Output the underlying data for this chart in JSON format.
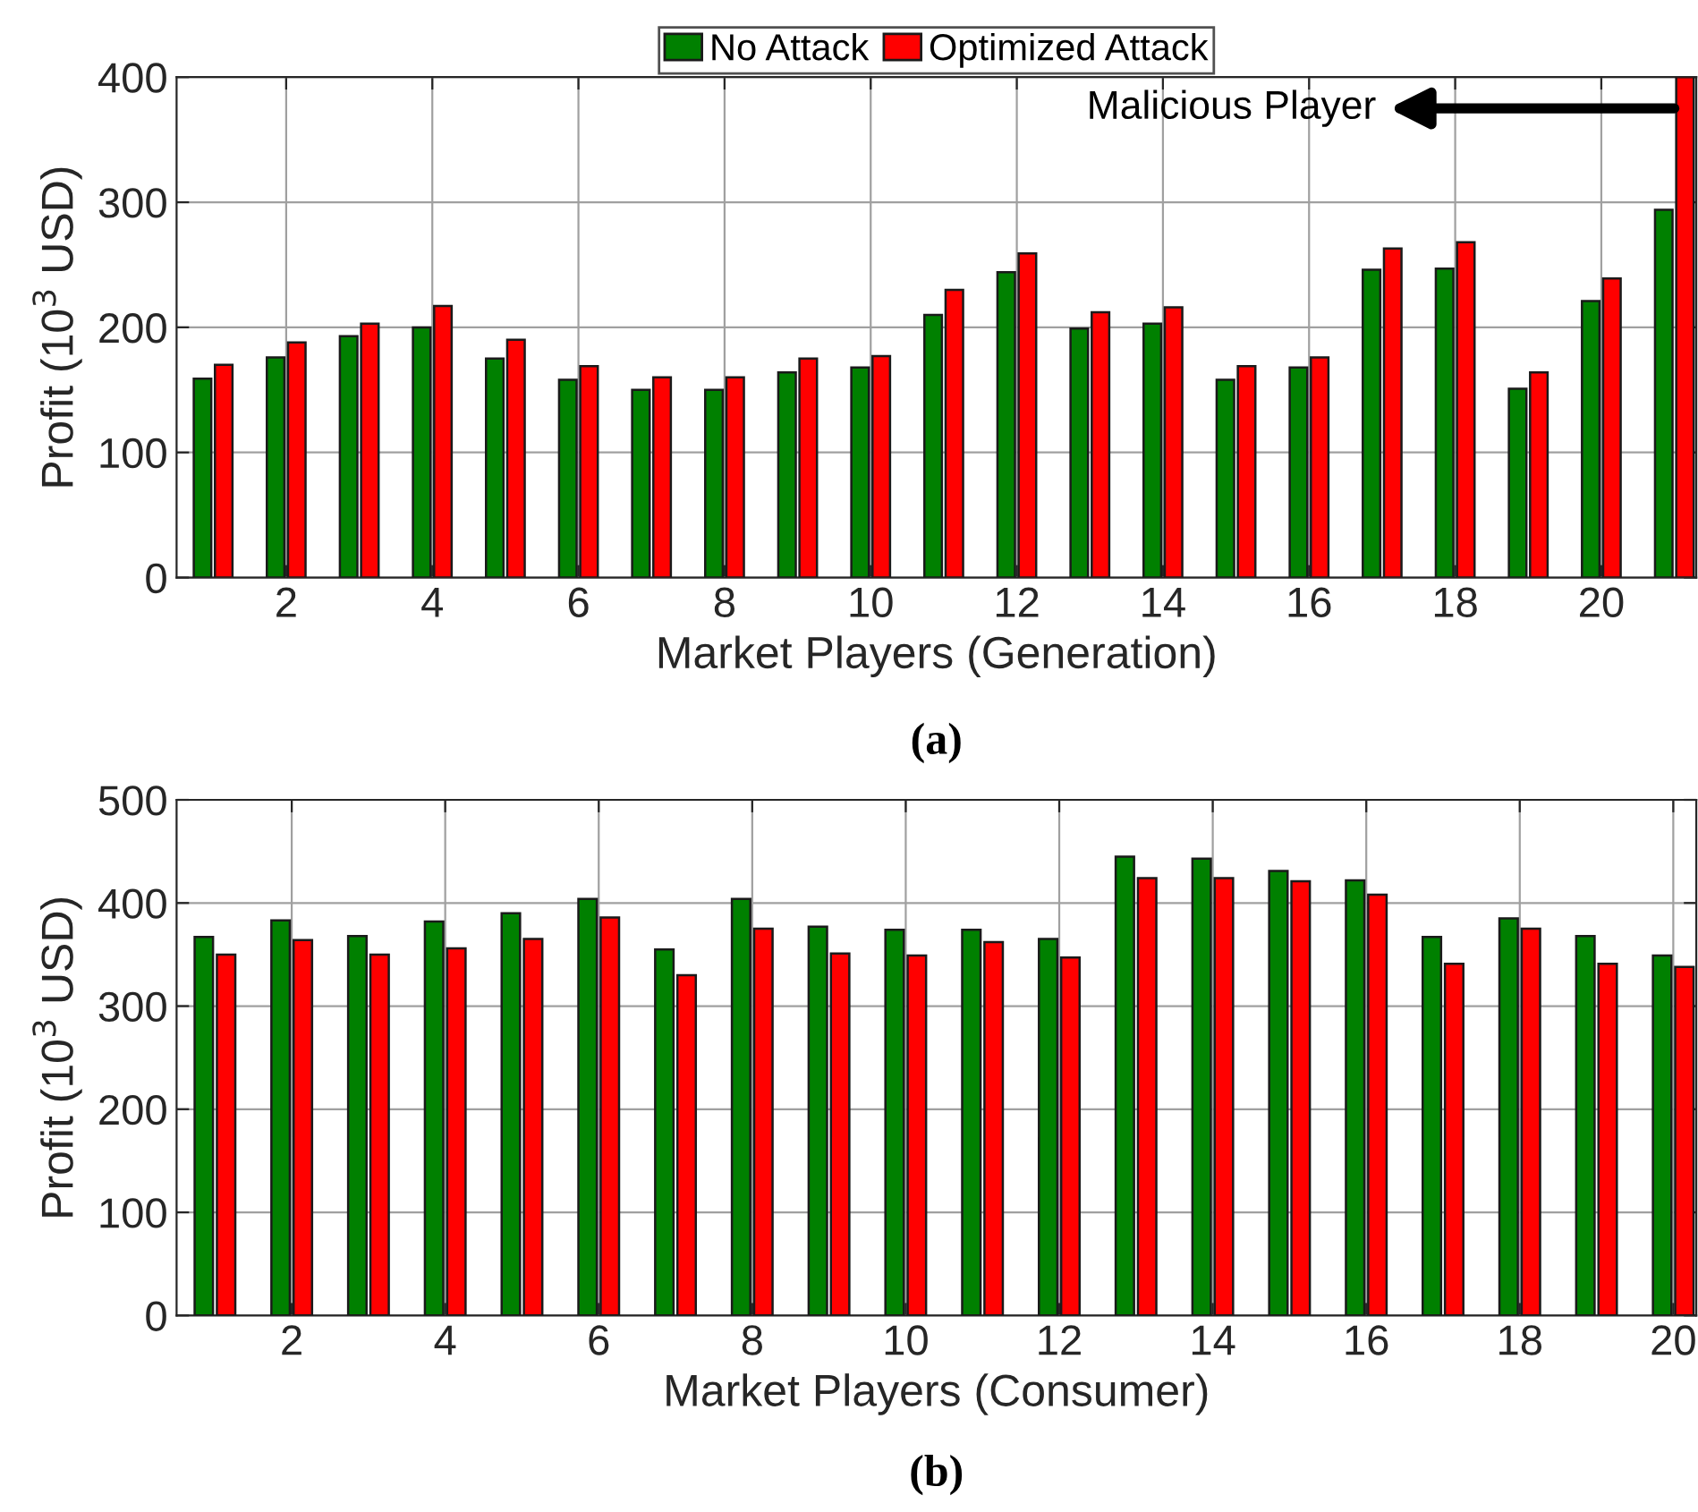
{
  "chart_data": [
    {
      "type": "bar",
      "title": "(a)",
      "xlabel": "Market Players (Generation)",
      "ylabel": "Profit (10$^{3}$ USD)",
      "x": [
        1,
        2,
        3,
        4,
        5,
        6,
        7,
        8,
        9,
        10,
        11,
        12,
        13,
        14,
        15,
        16,
        17,
        18,
        19,
        20,
        21
      ],
      "series": [
        {
          "name": "No Attack",
          "color": "#008000",
          "values": [
            159,
            176,
            193,
            200,
            175,
            158,
            150,
            150,
            164,
            168,
            210,
            244,
            199,
            203,
            158,
            168,
            246,
            247,
            151,
            221,
            294
          ]
        },
        {
          "name": "Optimized Attack",
          "color": "#ff0000",
          "values": [
            170,
            188,
            203,
            217,
            190,
            169,
            160,
            160,
            175,
            177,
            230,
            259,
            212,
            216,
            169,
            176,
            263,
            268,
            164,
            239,
            400
          ]
        }
      ],
      "xlim": [
        0.5,
        21.3
      ],
      "xticks": [
        2,
        4,
        6,
        8,
        10,
        12,
        14,
        16,
        18,
        20
      ],
      "ylim": [
        0,
        400
      ],
      "yticks": [
        0,
        100,
        200,
        300,
        400
      ],
      "grid": true,
      "legend": "top",
      "annotations": [
        {
          "text": "Malicious Player",
          "x": 21,
          "y": 375
        }
      ]
    },
    {
      "type": "bar",
      "title": "(b)",
      "xlabel": "Market Players (Consumer)",
      "ylabel": "Profit (10$^{3}$ USD)",
      "x": [
        1,
        2,
        3,
        4,
        5,
        6,
        7,
        8,
        9,
        10,
        11,
        12,
        13,
        14,
        15,
        16,
        17,
        18,
        19,
        20
      ],
      "series": [
        {
          "color": "#008000",
          "values": [
            367,
            383,
            368,
            382,
            390,
            404,
            355,
            404,
            377,
            374,
            374,
            365,
            445,
            443,
            431,
            422,
            367,
            385,
            368,
            349
          ]
        },
        {
          "color": "#ff0000",
          "values": [
            350,
            364,
            350,
            356,
            365,
            386,
            330,
            375,
            351,
            349,
            362,
            347,
            424,
            424,
            421,
            408,
            341,
            375,
            341,
            338
          ]
        }
      ],
      "xlim": [
        0.5,
        20.3
      ],
      "xticks": [
        2,
        4,
        6,
        8,
        10,
        12,
        14,
        16,
        18,
        20
      ],
      "ylim": [
        0,
        500
      ],
      "yticks": [
        0,
        100,
        200,
        300,
        400,
        500
      ],
      "grid": true
    }
  ]
}
